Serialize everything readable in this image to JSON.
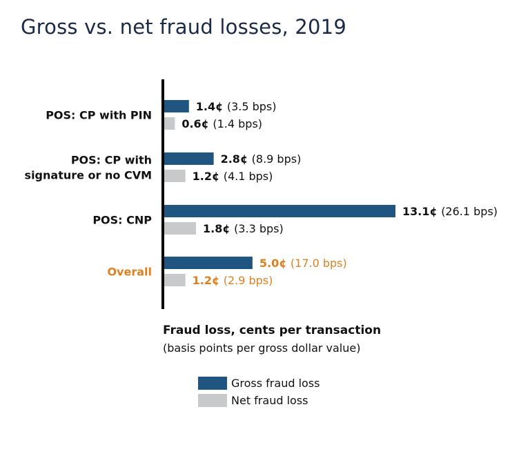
{
  "title": "Gross vs. net fraud losses, 2019",
  "colors": {
    "gross": "#1f5580",
    "net": "#c8c9cb",
    "highlight": "#e07f1e",
    "text": "#111111",
    "axis": "#000000"
  },
  "chart_data": {
    "type": "bar",
    "orientation": "horizontal",
    "categories": [
      "POS: CP with PIN",
      "POS: CP with signature or no CVM",
      "POS: CNP",
      "Overall"
    ],
    "series": [
      {
        "name": "Gross fraud loss",
        "values": [
          1.4,
          2.8,
          13.1,
          5.0
        ],
        "labels": [
          "1.4¢",
          "2.8¢",
          "13.1¢",
          "5.0¢"
        ],
        "bps_labels": [
          "(3.5 bps)",
          "(8.9 bps)",
          "(26.1 bps)",
          "(17.0 bps)"
        ]
      },
      {
        "name": "Net fraud loss",
        "values": [
          0.6,
          1.2,
          1.8,
          1.2
        ],
        "labels": [
          "0.6¢",
          "1.2¢",
          "1.8¢",
          "1.2¢"
        ],
        "bps_labels": [
          "(1.4 bps)",
          "(4.1 bps)",
          "(3.3 bps)",
          "(2.9 bps)"
        ]
      }
    ],
    "highlighted_category": "Overall",
    "xlabel": "Fraud loss, cents per transaction",
    "xlabel_sub": "(basis points per gross dollar value)",
    "xlim": [
      0,
      13.1
    ],
    "grid": false,
    "legend": "bottom"
  }
}
